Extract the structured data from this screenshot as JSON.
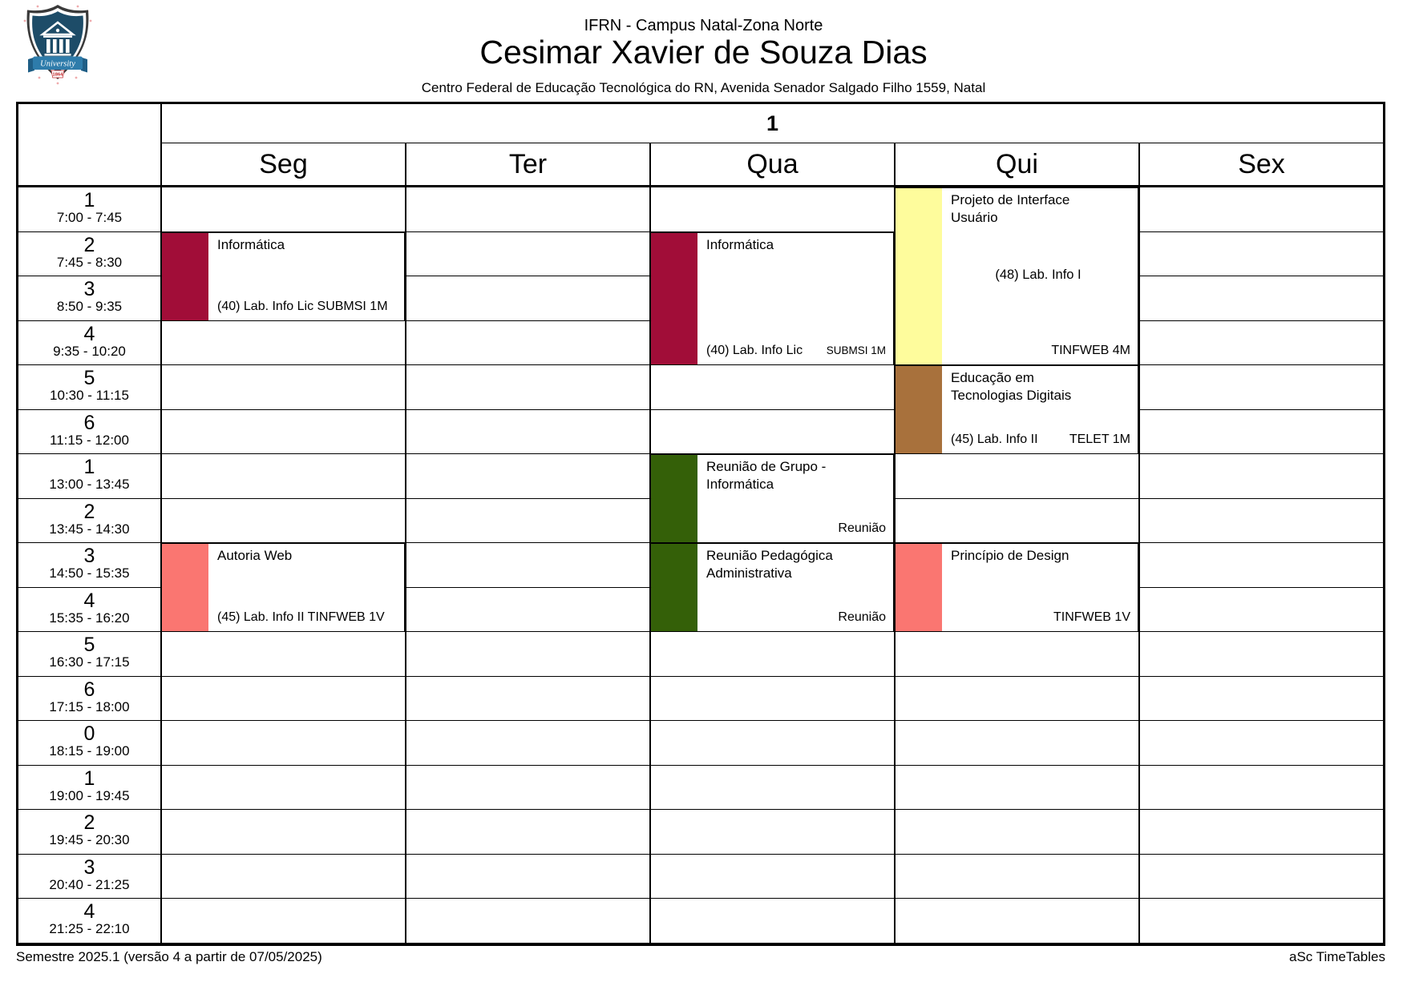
{
  "header": {
    "institution": "IFRN - Campus Natal-Zona Norte",
    "teacher": "Cesimar Xavier de Souza Dias",
    "address": "Centro Federal de Educação Tecnológica do RN, Avenida Senador Salgado Filho 1559, Natal"
  },
  "logo": {
    "banner_text": "University",
    "year_text": "1864"
  },
  "table": {
    "group_label": "1",
    "days": [
      "Seg",
      "Ter",
      "Qua",
      "Qui",
      "Sex"
    ],
    "periods": [
      {
        "num": "1",
        "time": "7:00 - 7:45"
      },
      {
        "num": "2",
        "time": "7:45 - 8:30"
      },
      {
        "num": "3",
        "time": "8:50 - 9:35"
      },
      {
        "num": "4",
        "time": "9:35 - 10:20"
      },
      {
        "num": "5",
        "time": "10:30 - 11:15"
      },
      {
        "num": "6",
        "time": "11:15 - 12:00"
      },
      {
        "num": "1",
        "time": "13:00 - 13:45"
      },
      {
        "num": "2",
        "time": "13:45 - 14:30"
      },
      {
        "num": "3",
        "time": "14:50 - 15:35"
      },
      {
        "num": "4",
        "time": "15:35 - 16:20"
      },
      {
        "num": "5",
        "time": "16:30 - 17:15"
      },
      {
        "num": "6",
        "time": "17:15 - 18:00"
      },
      {
        "num": "0",
        "time": "18:15 - 19:00"
      },
      {
        "num": "1",
        "time": "19:00 - 19:45"
      },
      {
        "num": "2",
        "time": "19:45 - 20:30"
      },
      {
        "num": "3",
        "time": "20:40 - 21:25"
      },
      {
        "num": "4",
        "time": "21:25 - 22:10"
      }
    ]
  },
  "classes": [
    {
      "day": "Seg",
      "day_index": 0,
      "period_start": 2,
      "period_end": 3,
      "color": "#A10D38",
      "title": "Informática",
      "bottom_left": "(40) Lab. Info Lic SUBMSI 1M",
      "bottom_right": "",
      "center": "",
      "bottom_right_small": false
    },
    {
      "day": "Qua",
      "day_index": 2,
      "period_start": 2,
      "period_end": 4,
      "color": "#A10D38",
      "title": "Informática",
      "bottom_left": "(40) Lab. Info Lic",
      "bottom_right": "SUBMSI 1M",
      "center": "",
      "bottom_right_small": true
    },
    {
      "day": "Qui",
      "day_index": 3,
      "period_start": 1,
      "period_end": 4,
      "color": "#FEFC9C",
      "title": "Projeto de Interface\nUsuário",
      "bottom_left": "",
      "bottom_right": "TINFWEB 4M",
      "center": "(48) Lab. Info I",
      "bottom_right_small": false
    },
    {
      "day": "Qui",
      "day_index": 3,
      "period_start": 5,
      "period_end": 6,
      "color": "#A8713C",
      "title": "Educação em\nTecnologias Digitais",
      "bottom_left": "(45) Lab. Info II",
      "bottom_right": "TELET 1M",
      "center": "",
      "bottom_right_small": false
    },
    {
      "day": "Qua",
      "day_index": 2,
      "period_start": 7,
      "period_end": 8,
      "color": "#346008",
      "title": "Reunião de Grupo -\nInformática",
      "bottom_left": "",
      "bottom_right": "Reunião",
      "center": "",
      "bottom_right_small": false
    },
    {
      "day": "Seg",
      "day_index": 0,
      "period_start": 9,
      "period_end": 10,
      "color": "#FA7671",
      "title": "Autoria Web",
      "bottom_left": "(45) Lab. Info II TINFWEB 1V",
      "bottom_right": "",
      "center": "",
      "bottom_right_small": false
    },
    {
      "day": "Qua",
      "day_index": 2,
      "period_start": 9,
      "period_end": 10,
      "color": "#346008",
      "title": "Reunião Pedagógica\nAdministrativa",
      "bottom_left": "",
      "bottom_right": "Reunião",
      "center": "",
      "bottom_right_small": false
    },
    {
      "day": "Qui",
      "day_index": 3,
      "period_start": 9,
      "period_end": 10,
      "color": "#FA7671",
      "title": "Princípio de Design",
      "bottom_left": "",
      "bottom_right": "TINFWEB 1V",
      "center": "",
      "bottom_right_small": false
    }
  ],
  "footer": {
    "left": "Semestre 2025.1 (versão 4 a partir de 07/05/2025)",
    "right": "aSc TimeTables"
  }
}
